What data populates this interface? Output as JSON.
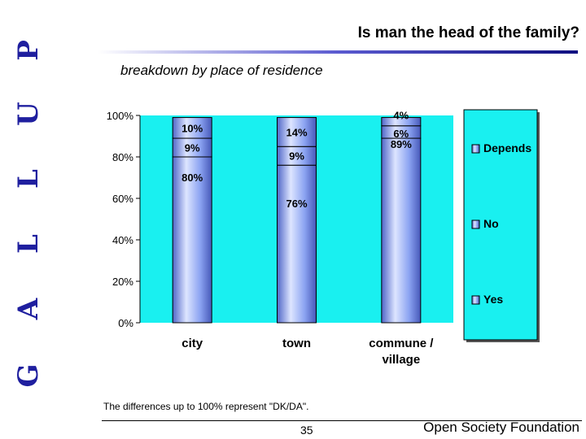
{
  "logo": {
    "letters": [
      "G",
      "A",
      "L",
      "L",
      "U",
      "P"
    ]
  },
  "slide": {
    "title": "Is man the head of the family?",
    "subtitle": "breakdown by place of residence",
    "note": "The differences up to 100% represent \"DK/DA\".",
    "page_number": "35",
    "footer": "Open Society Foundation"
  },
  "colors": {
    "plot_bg": "#19f0f0",
    "bar": "#8ca4f2",
    "bar_highlight": "#dde5ff",
    "bar_shadow": "#5066c8",
    "legend_bg": "#19f0f0",
    "rule": "#1f1f9f"
  },
  "chart_data": {
    "type": "bar",
    "stacked": true,
    "categories": [
      "city",
      "town",
      "commune / village"
    ],
    "category_lines": [
      [
        "city"
      ],
      [
        "town"
      ],
      [
        "commune /",
        "village"
      ]
    ],
    "series": [
      {
        "name": "Yes",
        "values": [
          80,
          76,
          89
        ],
        "labels": [
          "80%",
          "76%",
          "89%"
        ]
      },
      {
        "name": "No",
        "values": [
          9,
          9,
          6
        ],
        "labels": [
          "9%",
          "9%",
          "6%"
        ]
      },
      {
        "name": "Depends",
        "values": [
          10,
          14,
          4
        ],
        "labels": [
          "10%",
          "14%",
          "4%"
        ]
      }
    ],
    "ylim": [
      0,
      100
    ],
    "y_ticks": [
      0,
      20,
      40,
      60,
      80,
      100
    ],
    "y_tick_labels": [
      "0%",
      "20%",
      "40%",
      "60%",
      "80%",
      "100%"
    ],
    "legend": {
      "position": "right",
      "order": [
        "Depends",
        "No",
        "Yes"
      ]
    },
    "grid": false
  }
}
